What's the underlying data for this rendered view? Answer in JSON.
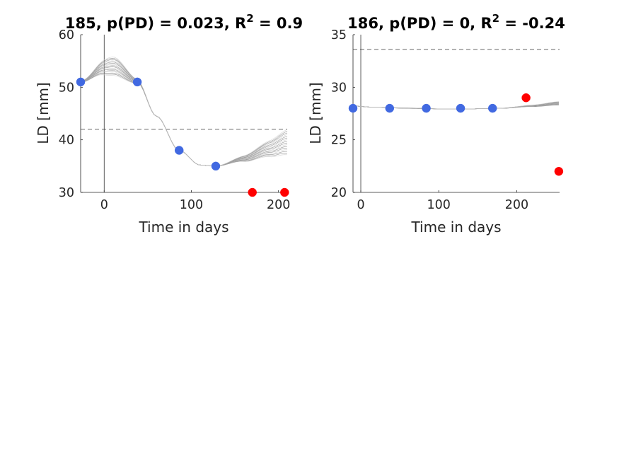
{
  "chart_data": [
    {
      "type": "scatter",
      "title": "185, p(PD) = 0.023, R",
      "title_sup": "2",
      "title_tail": " = 0.9",
      "xlabel": "Time in days",
      "ylabel": "LD [mm]",
      "xlim": [
        -27,
        210
      ],
      "ylim": [
        30,
        60
      ],
      "xticks": [
        0,
        100,
        200
      ],
      "yticks": [
        30,
        40,
        50,
        60
      ],
      "threshold": 42,
      "zero_line_x": 0,
      "grid": false,
      "series": [
        {
          "role": "fitted",
          "color": "#4169e1",
          "x": [
            -27,
            38,
            86,
            128
          ],
          "y": [
            51,
            51,
            38,
            35
          ]
        },
        {
          "role": "excluded",
          "color": "#ff0000",
          "x": [
            170,
            207
          ],
          "y": [
            30,
            30
          ]
        }
      ],
      "curve_shape": {
        "mean": [
          [
            -27,
            51
          ],
          [
            0,
            53.2
          ],
          [
            10,
            53.3
          ],
          [
            38,
            51
          ],
          [
            60,
            44.5
          ],
          [
            86,
            38
          ],
          [
            110,
            35.2
          ],
          [
            128,
            35
          ],
          [
            160,
            36.2
          ],
          [
            190,
            37.7
          ],
          [
            210,
            38.6
          ]
        ],
        "spread_peak": 3.5,
        "spread_tail": 4.8
      }
    },
    {
      "type": "scatter",
      "title": "186, p(PD) = 0, R",
      "title_sup": "2",
      "title_tail": " = -0.24",
      "xlabel": "Time in days",
      "ylabel": "LD [mm]",
      "xlim": [
        -10,
        255
      ],
      "ylim": [
        20,
        35
      ],
      "xticks": [
        0,
        100,
        200
      ],
      "yticks": [
        20,
        25,
        30,
        35
      ],
      "threshold": 33.6,
      "zero_line_x": 0,
      "grid": false,
      "series": [
        {
          "role": "fitted",
          "color": "#4169e1",
          "x": [
            -10,
            37,
            84,
            128,
            169
          ],
          "y": [
            28,
            28,
            28,
            28,
            28
          ]
        },
        {
          "role": "excluded",
          "color": "#ff0000",
          "x": [
            212,
            254
          ],
          "y": [
            29,
            22
          ]
        }
      ],
      "curve_shape": {
        "mean": [
          [
            -10,
            28.2
          ],
          [
            20,
            28.1
          ],
          [
            60,
            28.0
          ],
          [
            100,
            27.95
          ],
          [
            140,
            27.95
          ],
          [
            180,
            28.0
          ],
          [
            220,
            28.2
          ],
          [
            255,
            28.4
          ]
        ],
        "spread_peak": 0.05,
        "spread_tail": 0.35
      }
    }
  ]
}
